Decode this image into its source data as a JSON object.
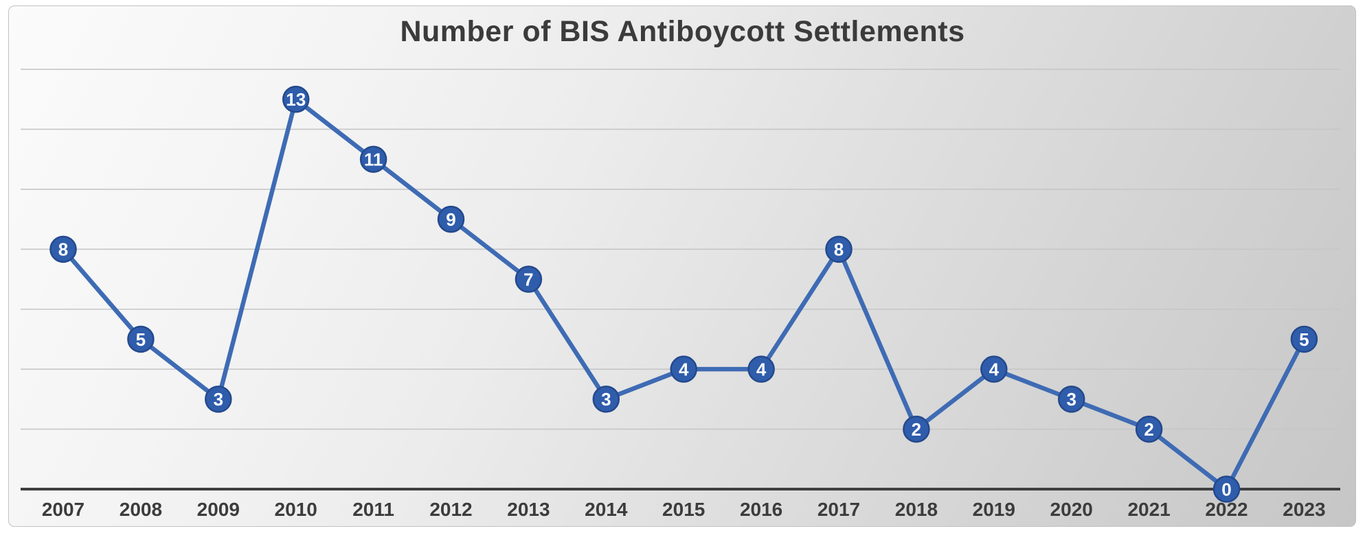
{
  "chart_data": {
    "type": "line",
    "title": "Number of BIS Antiboycott Settlements",
    "categories": [
      "2007",
      "2008",
      "2009",
      "2010",
      "2011",
      "2012",
      "2013",
      "2014",
      "2015",
      "2016",
      "2017",
      "2018",
      "2019",
      "2020",
      "2021",
      "2022",
      "2023"
    ],
    "values": [
      8,
      5,
      3,
      13,
      11,
      9,
      7,
      3,
      4,
      4,
      8,
      2,
      4,
      3,
      2,
      0,
      5
    ],
    "series_name": "Number of BIS Antiboycott Settlements",
    "xlabel": "",
    "ylabel": "",
    "ylim": [
      0,
      14
    ],
    "gridline_values": [
      2,
      4,
      6,
      8,
      10,
      12,
      14
    ],
    "grid": "on",
    "legend": "none",
    "data_labels": "on markers",
    "colors": {
      "line": "#3e6bb4",
      "marker_fill": "#2f5dab",
      "marker_ring": "#24498c",
      "marker_text": "#ffffff",
      "gridline": "#c6c6c6",
      "axis": "#3f3f3f",
      "title_text": "#3b3b3b",
      "tick_text": "#3c3c3c",
      "background_top": "#fbfbfb",
      "background_bottom": "#c6c6c6"
    }
  }
}
